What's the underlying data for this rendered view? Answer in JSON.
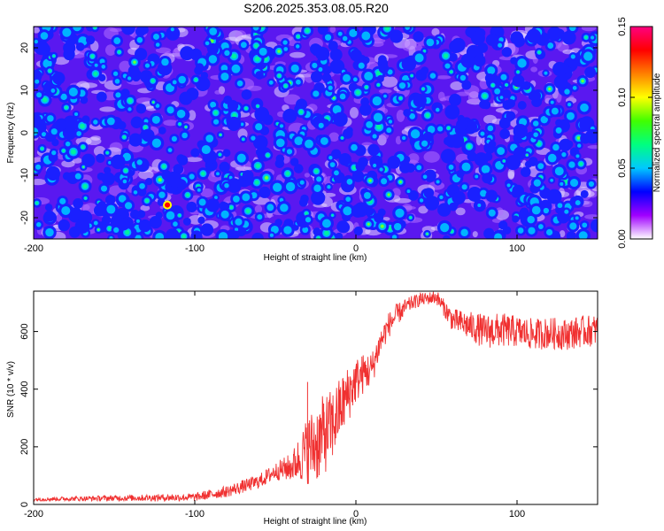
{
  "title": "S206.2025.353.08.05.R20",
  "chart_data": [
    {
      "type": "heatmap",
      "name": "spectrogram",
      "xlabel": "Height of straight line (km)",
      "ylabel": "Frequency (Hz)",
      "xlim": [
        -200,
        150
      ],
      "ylim": [
        -25,
        25
      ],
      "xticks": [
        -200,
        -100,
        0,
        100
      ],
      "yticks": [
        -20,
        -10,
        0,
        10,
        20
      ],
      "colorbar": {
        "label": "Normalized spectral amplitude",
        "range": [
          0.0,
          0.15
        ],
        "ticks": [
          "0.00",
          "0.05",
          "0.10",
          "0.15"
        ],
        "colormap": [
          "#ffffff",
          "#a000ff",
          "#0000ff",
          "#00c8ff",
          "#00ff80",
          "#40ff00",
          "#ffff00",
          "#ff8000",
          "#ff0000",
          "#ff0080"
        ]
      },
      "blob_density_per_100km_by_10hz": 90,
      "max_point": {
        "x": -117,
        "y": -17,
        "value": 0.15
      }
    },
    {
      "type": "line",
      "name": "snr",
      "xlabel": "Height of straight line (km)",
      "ylabel": "SNR (10 * v/v)",
      "xlim": [
        -200,
        150
      ],
      "ylim": [
        0,
        740
      ],
      "xticks": [
        -200,
        -100,
        0,
        100
      ],
      "yticks": [
        0,
        200,
        400,
        600
      ],
      "color": "#f03030",
      "series": [
        {
          "name": "SNR",
          "x": [
            -200,
            -150,
            -100,
            -80,
            -60,
            -50,
            -40,
            -35,
            -30,
            -25,
            -20,
            -15,
            -10,
            -5,
            0,
            5,
            10,
            15,
            20,
            25,
            30,
            35,
            40,
            45,
            50,
            55,
            60,
            70,
            80,
            90,
            100,
            110,
            120,
            130,
            140,
            150
          ],
          "values": [
            18,
            22,
            25,
            45,
            80,
            115,
            130,
            160,
            190,
            210,
            240,
            270,
            330,
            380,
            430,
            455,
            470,
            560,
            620,
            655,
            680,
            700,
            710,
            715,
            720,
            680,
            640,
            620,
            600,
            605,
            600,
            590,
            595,
            590,
            600,
            605
          ],
          "noise": [
            6,
            10,
            14,
            20,
            25,
            30,
            50,
            80,
            120,
            140,
            140,
            130,
            110,
            100,
            80,
            70,
            60,
            50,
            45,
            40,
            30,
            25,
            22,
            22,
            25,
            30,
            40,
            50,
            60,
            60,
            55,
            55,
            55,
            55,
            55,
            55
          ]
        }
      ],
      "spikes": [
        {
          "x": -30,
          "value": 425
        },
        {
          "x": -20,
          "value": 350
        },
        {
          "x": 40,
          "value": 735
        }
      ]
    }
  ]
}
